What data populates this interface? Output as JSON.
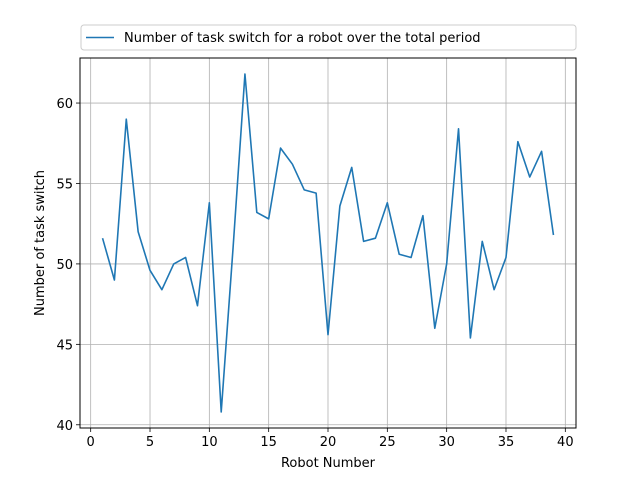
{
  "chart_data": {
    "type": "line",
    "title": "",
    "xlabel": "Robot Number",
    "ylabel": "Number of task switch",
    "xlim": [
      -0.9,
      40.9
    ],
    "ylim": [
      39.8,
      62.8
    ],
    "xticks": [
      0,
      5,
      10,
      15,
      20,
      25,
      30,
      35,
      40
    ],
    "yticks": [
      40,
      45,
      50,
      55,
      60
    ],
    "grid": true,
    "legend_position": "top-center, above plot",
    "series": [
      {
        "name": "Number of task switch for a robot over the total period",
        "color": "#1f77b4",
        "x": [
          1,
          2,
          3,
          4,
          5,
          6,
          7,
          8,
          9,
          10,
          11,
          12,
          13,
          14,
          15,
          16,
          17,
          18,
          19,
          20,
          21,
          22,
          23,
          24,
          25,
          26,
          27,
          28,
          29,
          30,
          31,
          32,
          33,
          34,
          35,
          36,
          37,
          38,
          39
        ],
        "y": [
          51.6,
          49.0,
          59.0,
          52.0,
          49.6,
          48.4,
          50.0,
          50.4,
          47.4,
          53.8,
          40.8,
          51.0,
          61.8,
          53.2,
          52.8,
          57.2,
          56.2,
          54.6,
          54.4,
          45.6,
          53.6,
          56.0,
          51.4,
          51.6,
          53.8,
          50.6,
          50.4,
          53.0,
          46.0,
          50.0,
          58.4,
          45.4,
          51.4,
          48.4,
          50.4,
          57.6,
          55.4,
          57.0,
          51.8
        ]
      }
    ]
  }
}
